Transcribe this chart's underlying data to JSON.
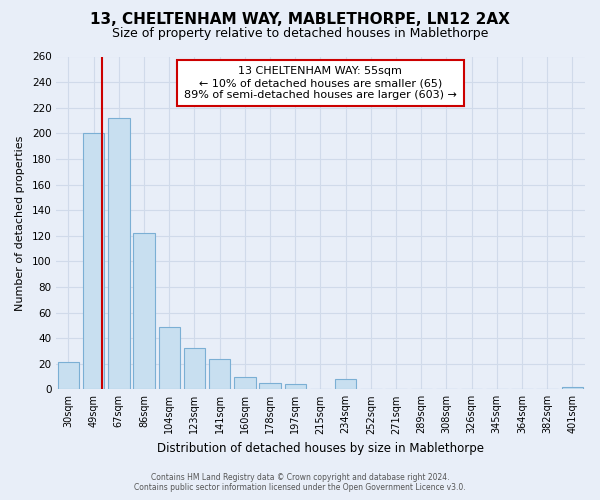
{
  "title": "13, CHELTENHAM WAY, MABLETHORPE, LN12 2AX",
  "subtitle": "Size of property relative to detached houses in Mablethorpe",
  "xlabel": "Distribution of detached houses by size in Mablethorpe",
  "ylabel": "Number of detached properties",
  "categories": [
    "30sqm",
    "49sqm",
    "67sqm",
    "86sqm",
    "104sqm",
    "123sqm",
    "141sqm",
    "160sqm",
    "178sqm",
    "197sqm",
    "215sqm",
    "234sqm",
    "252sqm",
    "271sqm",
    "289sqm",
    "308sqm",
    "326sqm",
    "345sqm",
    "364sqm",
    "382sqm",
    "401sqm"
  ],
  "values": [
    21,
    200,
    212,
    122,
    49,
    32,
    24,
    10,
    5,
    4,
    0,
    8,
    0,
    0,
    0,
    0,
    0,
    0,
    0,
    0,
    2
  ],
  "bar_color": "#c8dff0",
  "bar_edge_color": "#7bafd4",
  "property_line_color": "#cc0000",
  "ylim": [
    0,
    260
  ],
  "yticks": [
    0,
    20,
    40,
    60,
    80,
    100,
    120,
    140,
    160,
    180,
    200,
    220,
    240,
    260
  ],
  "annotation_title": "13 CHELTENHAM WAY: 55sqm",
  "annotation_line1": "← 10% of detached houses are smaller (65)",
  "annotation_line2": "89% of semi-detached houses are larger (603) →",
  "annotation_box_color": "#ffffff",
  "annotation_box_edge_color": "#cc0000",
  "footer1": "Contains HM Land Registry data © Crown copyright and database right 2024.",
  "footer2": "Contains public sector information licensed under the Open Government Licence v3.0.",
  "background_color": "#e8eef8",
  "grid_color": "#d0daea"
}
